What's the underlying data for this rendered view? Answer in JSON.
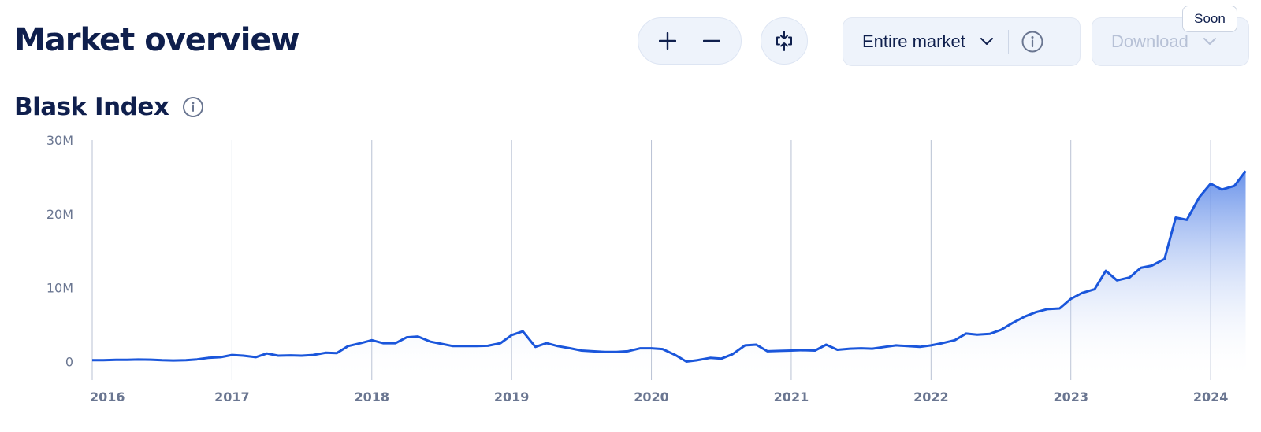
{
  "header": {
    "title": "Market overview",
    "market_select": "Entire market",
    "download_label": "Download",
    "soon_badge": "Soon"
  },
  "section": {
    "title": "Blask Index"
  },
  "icons": {
    "zoom_in": "plus-icon",
    "zoom_out": "minus-icon",
    "collapse": "collapse-arrows-icon",
    "info": "info-icon",
    "chevron": "chevron-down-icon"
  },
  "colors": {
    "line": "#1a56db",
    "area_top": "#4f7fe6",
    "area_bottom": "#ffffff",
    "grid": "#9aa6c0",
    "title": "#0f1f4d"
  },
  "chart_data": {
    "type": "area",
    "title": "Blask Index",
    "xlabel": "",
    "ylabel": "",
    "ylim": [
      -2500000,
      30000000
    ],
    "xlim": [
      2016.0,
      2024.27
    ],
    "y_ticks": [
      0,
      10000000,
      20000000,
      30000000
    ],
    "y_tick_labels": [
      "0",
      "10M",
      "20M",
      "30M"
    ],
    "x_ticks": [
      2016,
      2017,
      2018,
      2019,
      2020,
      2021,
      2022,
      2023,
      2024
    ],
    "x_tick_labels": [
      "2016",
      "2017",
      "2018",
      "2019",
      "2020",
      "2021",
      "2022",
      "2023",
      "2024"
    ],
    "vertical_gridlines": true,
    "horizontal_gridlines": false,
    "series": [
      {
        "x": [
          2016.0,
          2016.08,
          2016.17,
          2016.25,
          2016.33,
          2016.42,
          2016.5,
          2016.58,
          2016.67,
          2016.75,
          2016.83,
          2016.92,
          2017.0,
          2017.08,
          2017.17,
          2017.25,
          2017.33,
          2017.42,
          2017.5,
          2017.58,
          2017.67,
          2017.75,
          2017.83,
          2017.92,
          2018.0,
          2018.08,
          2018.17,
          2018.25,
          2018.33,
          2018.42,
          2018.5,
          2018.58,
          2018.67,
          2018.75,
          2018.83,
          2018.92,
          2019.0,
          2019.08,
          2019.17,
          2019.25,
          2019.33,
          2019.42,
          2019.5,
          2019.58,
          2019.67,
          2019.75,
          2019.83,
          2019.92,
          2020.0,
          2020.08,
          2020.17,
          2020.25,
          2020.33,
          2020.42,
          2020.5,
          2020.58,
          2020.67,
          2020.75,
          2020.83,
          2020.92,
          2021.0,
          2021.08,
          2021.17,
          2021.25,
          2021.33,
          2021.42,
          2021.5,
          2021.58,
          2021.67,
          2021.75,
          2021.83,
          2021.92,
          2022.0,
          2022.08,
          2022.17,
          2022.25,
          2022.33,
          2022.42,
          2022.5,
          2022.58,
          2022.67,
          2022.75,
          2022.83,
          2022.92,
          2023.0,
          2023.08,
          2023.17,
          2023.25,
          2023.33,
          2023.42,
          2023.5,
          2023.58,
          2023.67,
          2023.75,
          2023.83,
          2023.92,
          2024.0,
          2024.08,
          2024.17,
          2024.25
        ],
        "y": [
          200000,
          200000,
          250000,
          250000,
          280000,
          260000,
          180000,
          150000,
          200000,
          300000,
          500000,
          600000,
          900000,
          800000,
          600000,
          1100000,
          800000,
          850000,
          800000,
          900000,
          1200000,
          1150000,
          2100000,
          2500000,
          2900000,
          2500000,
          2500000,
          3300000,
          3400000,
          2700000,
          2400000,
          2100000,
          2100000,
          2100000,
          2150000,
          2500000,
          3600000,
          4100000,
          2000000,
          2500000,
          2100000,
          1800000,
          1500000,
          1400000,
          1300000,
          1300000,
          1400000,
          1800000,
          1800000,
          1700000,
          900000,
          0,
          200000,
          500000,
          400000,
          1000000,
          2200000,
          2300000,
          1400000,
          1450000,
          1500000,
          1550000,
          1500000,
          2300000,
          1600000,
          1750000,
          1800000,
          1750000,
          2000000,
          2200000,
          2100000,
          2000000,
          2200000,
          2500000,
          2900000,
          3800000,
          3650000,
          3750000,
          4300000,
          5200000,
          6100000,
          6700000,
          7100000,
          7200000,
          8500000,
          9300000,
          9800000,
          12300000,
          11000000,
          11400000,
          12700000,
          13000000,
          13900000,
          19500000,
          19200000,
          22300000,
          24100000,
          23300000,
          23800000,
          25800000
        ]
      }
    ]
  }
}
